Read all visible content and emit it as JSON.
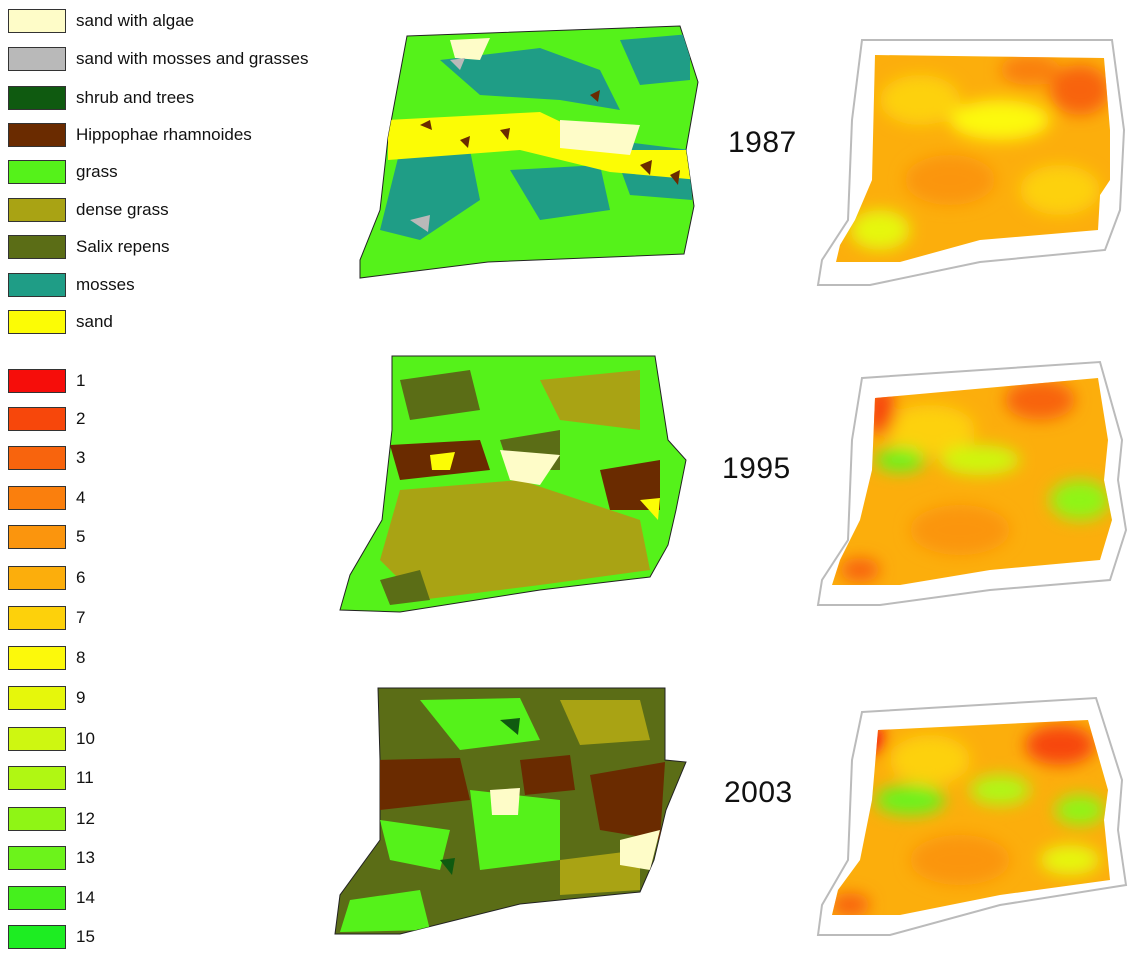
{
  "vegetation_legend": [
    {
      "label": "sand with algae",
      "color": "#fefcc8"
    },
    {
      "label": "sand with mosses and grasses",
      "color": "#b9b9b9"
    },
    {
      "label": "shrub and trees",
      "color": "#0f5a10"
    },
    {
      "label": "Hippophae rhamnoides",
      "color": "#6a2b00"
    },
    {
      "label": "grass",
      "color": "#55f21a"
    },
    {
      "label": "dense grass",
      "color": "#a9a314"
    },
    {
      "label": "Salix repens",
      "color": "#5b6d16"
    },
    {
      "label": "mosses",
      "color": "#1f9d86"
    },
    {
      "label": "sand",
      "color": "#fcfc05"
    }
  ],
  "scale_legend": [
    {
      "label": "1",
      "color": "#f60d0a"
    },
    {
      "label": "2",
      "color": "#f7470b"
    },
    {
      "label": "3",
      "color": "#f8640d"
    },
    {
      "label": "4",
      "color": "#fa7f0d"
    },
    {
      "label": "5",
      "color": "#fb950d"
    },
    {
      "label": "6",
      "color": "#fcae0c"
    },
    {
      "label": "7",
      "color": "#fdd10b"
    },
    {
      "label": "8",
      "color": "#fcf90b"
    },
    {
      "label": "9",
      "color": "#e6f70b"
    },
    {
      "label": "10",
      "color": "#cef711"
    },
    {
      "label": "11",
      "color": "#b0f713"
    },
    {
      "label": "12",
      "color": "#8ff515"
    },
    {
      "label": "13",
      "color": "#6cf31b"
    },
    {
      "label": "14",
      "color": "#45f01d"
    },
    {
      "label": "15",
      "color": "#1ded22"
    }
  ],
  "years": [
    "1987",
    "1995",
    "2003"
  ]
}
